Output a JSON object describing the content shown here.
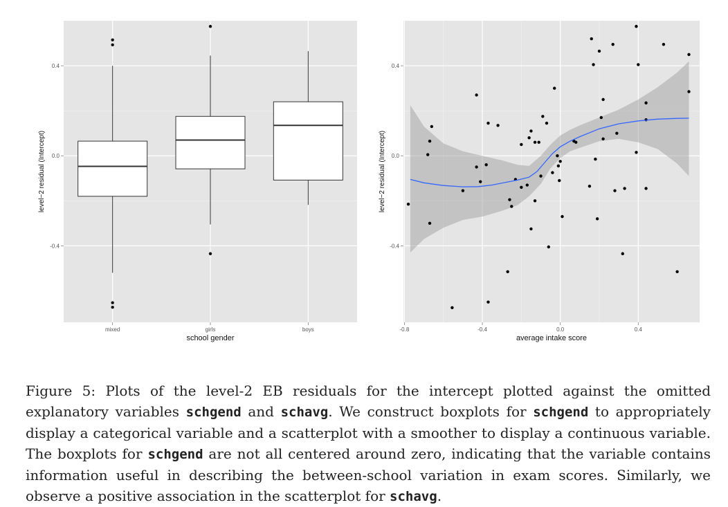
{
  "chart_data": [
    {
      "type": "box",
      "xlabel": "school gender",
      "ylabel": "level−2 residual (Intercept)",
      "ylim": [
        -0.74,
        0.6
      ],
      "yticks": [
        -0.4,
        0.0,
        0.4
      ],
      "ytick_labels": [
        "-0.4",
        "0.0",
        "0.4"
      ],
      "grid": true,
      "categories": [
        "mixed",
        "girls",
        "boys"
      ],
      "boxes": [
        {
          "q1": -0.18,
          "median": -0.047,
          "q3": 0.065,
          "whisker_low": -0.52,
          "whisker_high": 0.4,
          "outliers": [
            0.515,
            0.493,
            -0.653,
            -0.673
          ]
        },
        {
          "q1": -0.058,
          "median": 0.07,
          "q3": 0.175,
          "whisker_low": -0.305,
          "whisker_high": 0.445,
          "outliers": [
            0.575,
            -0.435
          ]
        },
        {
          "q1": -0.108,
          "median": 0.135,
          "q3": 0.24,
          "whisker_low": -0.218,
          "whisker_high": 0.465,
          "outliers": []
        }
      ]
    },
    {
      "type": "scatter",
      "xlabel": "average intake score",
      "ylabel": "level−2 residual (Intercept)",
      "xlim": [
        -0.805,
        0.715
      ],
      "ylim": [
        -0.74,
        0.6
      ],
      "xticks": [
        -0.8,
        -0.4,
        0.0,
        0.4
      ],
      "xtick_labels": [
        "-0.8",
        "-0.4",
        "0.0",
        "0.4"
      ],
      "yticks": [
        -0.4,
        0.0,
        0.4
      ],
      "ytick_labels": [
        "-0.4",
        "0.0",
        "0.4"
      ],
      "grid": true,
      "points": [
        [
          -0.78,
          -0.215
        ],
        [
          -0.66,
          0.13
        ],
        [
          -0.67,
          0.065
        ],
        [
          -0.68,
          0.005
        ],
        [
          -0.67,
          -0.3
        ],
        [
          -0.555,
          -0.675
        ],
        [
          -0.5,
          -0.155
        ],
        [
          -0.43,
          0.27
        ],
        [
          -0.43,
          -0.05
        ],
        [
          -0.41,
          -0.115
        ],
        [
          -0.38,
          -0.04
        ],
        [
          -0.37,
          0.145
        ],
        [
          -0.37,
          -0.65
        ],
        [
          -0.32,
          0.135
        ],
        [
          -0.27,
          -0.515
        ],
        [
          -0.26,
          -0.195
        ],
        [
          -0.25,
          -0.225
        ],
        [
          -0.23,
          -0.105
        ],
        [
          -0.2,
          -0.14
        ],
        [
          -0.2,
          0.05
        ],
        [
          -0.17,
          -0.13
        ],
        [
          -0.16,
          0.08
        ],
        [
          -0.15,
          0.11
        ],
        [
          -0.15,
          -0.325
        ],
        [
          -0.13,
          0.06
        ],
        [
          -0.13,
          -0.2
        ],
        [
          -0.11,
          0.06
        ],
        [
          -0.1,
          -0.09
        ],
        [
          -0.09,
          0.175
        ],
        [
          -0.07,
          0.145
        ],
        [
          -0.06,
          -0.405
        ],
        [
          -0.04,
          -0.075
        ],
        [
          -0.03,
          0.3
        ],
        [
          -0.015,
          0.0
        ],
        [
          -0.01,
          -0.045
        ],
        [
          -0.005,
          -0.11
        ],
        [
          0.0,
          -0.025
        ],
        [
          0.01,
          -0.27
        ],
        [
          0.07,
          0.065
        ],
        [
          0.08,
          0.06
        ],
        [
          0.15,
          -0.135
        ],
        [
          0.16,
          0.52
        ],
        [
          0.17,
          0.405
        ],
        [
          0.18,
          -0.015
        ],
        [
          0.19,
          -0.28
        ],
        [
          0.2,
          0.465
        ],
        [
          0.21,
          0.17
        ],
        [
          0.22,
          0.25
        ],
        [
          0.22,
          0.075
        ],
        [
          0.27,
          0.495
        ],
        [
          0.28,
          -0.155
        ],
        [
          0.29,
          0.1
        ],
        [
          0.32,
          -0.435
        ],
        [
          0.33,
          -0.145
        ],
        [
          0.39,
          0.575
        ],
        [
          0.39,
          0.015
        ],
        [
          0.4,
          0.405
        ],
        [
          0.44,
          0.235
        ],
        [
          0.44,
          0.16
        ],
        [
          0.44,
          -0.145
        ],
        [
          0.53,
          0.495
        ],
        [
          0.6,
          -0.515
        ],
        [
          0.66,
          0.45
        ],
        [
          0.66,
          0.285
        ]
      ],
      "smoother": [
        [
          -0.77,
          -0.105
        ],
        [
          -0.7,
          -0.12
        ],
        [
          -0.6,
          -0.132
        ],
        [
          -0.5,
          -0.138
        ],
        [
          -0.42,
          -0.137
        ],
        [
          -0.35,
          -0.13
        ],
        [
          -0.28,
          -0.118
        ],
        [
          -0.22,
          -0.108
        ],
        [
          -0.16,
          -0.095
        ],
        [
          -0.12,
          -0.07
        ],
        [
          -0.08,
          -0.03
        ],
        [
          -0.04,
          0.01
        ],
        [
          0.0,
          0.04
        ],
        [
          0.05,
          0.065
        ],
        [
          0.1,
          0.085
        ],
        [
          0.2,
          0.12
        ],
        [
          0.3,
          0.142
        ],
        [
          0.4,
          0.155
        ],
        [
          0.5,
          0.163
        ],
        [
          0.6,
          0.166
        ],
        [
          0.66,
          0.167
        ]
      ],
      "band_upper": [
        [
          -0.77,
          0.225
        ],
        [
          -0.7,
          0.13
        ],
        [
          -0.6,
          0.055
        ],
        [
          -0.5,
          0.02
        ],
        [
          -0.4,
          0.0
        ],
        [
          -0.3,
          -0.02
        ],
        [
          -0.22,
          -0.04
        ],
        [
          -0.16,
          -0.045
        ],
        [
          -0.1,
          0.0
        ],
        [
          -0.05,
          0.05
        ],
        [
          0.0,
          0.09
        ],
        [
          0.05,
          0.115
        ],
        [
          0.1,
          0.135
        ],
        [
          0.2,
          0.17
        ],
        [
          0.3,
          0.205
        ],
        [
          0.4,
          0.25
        ],
        [
          0.5,
          0.305
        ],
        [
          0.6,
          0.37
        ],
        [
          0.66,
          0.42
        ]
      ],
      "band_lower": [
        [
          -0.77,
          -0.43
        ],
        [
          -0.7,
          -0.37
        ],
        [
          -0.6,
          -0.32
        ],
        [
          -0.5,
          -0.285
        ],
        [
          -0.4,
          -0.27
        ],
        [
          -0.3,
          -0.245
        ],
        [
          -0.22,
          -0.22
        ],
        [
          -0.16,
          -0.18
        ],
        [
          -0.1,
          -0.125
        ],
        [
          -0.05,
          -0.055
        ],
        [
          0.0,
          -0.01
        ],
        [
          0.05,
          0.02
        ],
        [
          0.1,
          0.035
        ],
        [
          0.2,
          0.065
        ],
        [
          0.3,
          0.075
        ],
        [
          0.4,
          0.06
        ],
        [
          0.5,
          0.03
        ],
        [
          0.6,
          -0.035
        ],
        [
          0.66,
          -0.09
        ]
      ],
      "colors": {
        "smoother": "#3366ff",
        "band": "#999999",
        "points": "#000000"
      }
    }
  ],
  "caption": {
    "segments": [
      {
        "t": "Figure 5: Plots of the level-2 EB residuals for the intercept plotted against the omitted explanatory variables "
      },
      {
        "t": "schgend",
        "code": true
      },
      {
        "t": " and "
      },
      {
        "t": "schavg",
        "code": true
      },
      {
        "t": ". We construct boxplots for "
      },
      {
        "t": "schgend",
        "code": true
      },
      {
        "t": " to appropriately display a categorical variable and a scatterplot with a smoother to display a continuous variable. The boxplots for "
      },
      {
        "t": "schgend",
        "code": true
      },
      {
        "t": " are not all centered around zero, indicating that the variable contains information useful in describing the between-school variation in exam scores. Similarly, we observe a positive association in the scatterplot for "
      },
      {
        "t": "schavg",
        "code": true
      },
      {
        "t": "."
      }
    ]
  }
}
